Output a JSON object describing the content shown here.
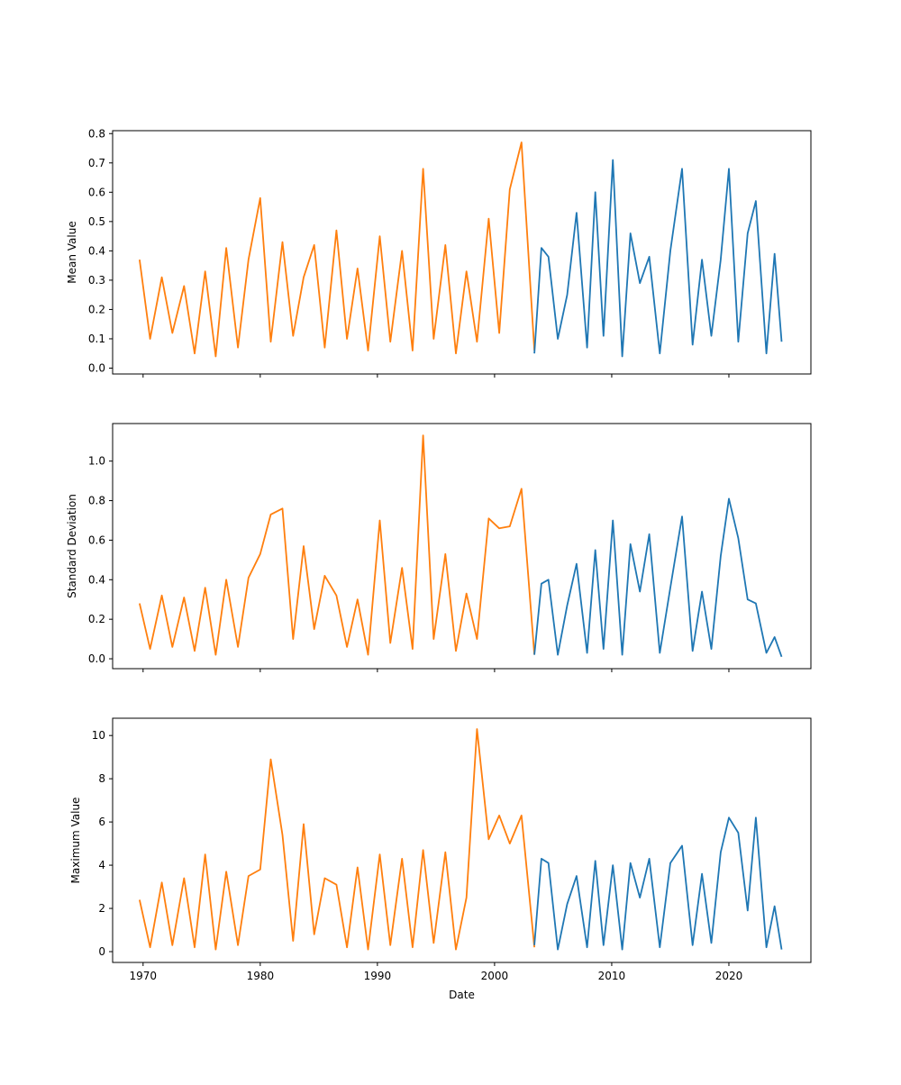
{
  "chart_data": [
    {
      "type": "line",
      "title": "",
      "xlabel": "",
      "ylabel": "Mean Value",
      "xlim": [
        1967.4,
        2027.0
      ],
      "ylim": [
        -0.02,
        0.81
      ],
      "xticks": [
        "1970",
        "1980",
        "1990",
        "2000",
        "2010",
        "2020"
      ],
      "yticks": [
        "0.0",
        "0.1",
        "0.2",
        "0.3",
        "0.4",
        "0.5",
        "0.6",
        "0.7",
        "0.8"
      ],
      "series": [
        {
          "color": "#ff7f0e",
          "x": [
            1969.7,
            1970.6,
            1971.6,
            1972.5,
            1973.5,
            1974.4,
            1975.3,
            1976.2,
            1977.1,
            1978.1,
            1979.0,
            1980.0,
            1980.9,
            1981.9,
            1982.8,
            1983.7,
            1984.6,
            1985.5,
            1986.5,
            1987.4,
            1988.3,
            1989.2,
            1990.2,
            1991.1,
            1992.1,
            1993.0,
            1993.9,
            1994.8,
            1995.8,
            1996.7,
            1997.6,
            1998.5,
            1999.5,
            2000.4,
            2001.3,
            2002.3,
            2003.4
          ],
          "y": [
            0.37,
            0.1,
            0.31,
            0.12,
            0.28,
            0.05,
            0.33,
            0.04,
            0.41,
            0.07,
            0.37,
            0.58,
            0.09,
            0.43,
            0.11,
            0.31,
            0.42,
            0.07,
            0.47,
            0.1,
            0.34,
            0.06,
            0.45,
            0.09,
            0.4,
            0.06,
            0.68,
            0.1,
            0.42,
            0.05,
            0.33,
            0.09,
            0.51,
            0.12,
            0.61,
            0.77,
            0.06
          ]
        },
        {
          "color": "#1f77b4",
          "x": [
            2003.4,
            2004.0,
            2004.6,
            2005.4,
            2006.2,
            2007.0,
            2007.9,
            2008.6,
            2009.3,
            2010.1,
            2010.9,
            2011.6,
            2012.4,
            2013.2,
            2014.1,
            2015.0,
            2016.0,
            2016.9,
            2017.7,
            2018.5,
            2019.3,
            2020.0,
            2020.8,
            2021.6,
            2022.3,
            2023.2,
            2023.9,
            2024.5
          ],
          "y": [
            0.05,
            0.41,
            0.38,
            0.1,
            0.25,
            0.53,
            0.07,
            0.6,
            0.11,
            0.71,
            0.04,
            0.46,
            0.29,
            0.38,
            0.05,
            0.4,
            0.68,
            0.08,
            0.37,
            0.11,
            0.37,
            0.68,
            0.09,
            0.46,
            0.57,
            0.05,
            0.39,
            0.09
          ]
        }
      ]
    },
    {
      "type": "line",
      "title": "",
      "xlabel": "",
      "ylabel": "Standard Deviation",
      "xlim": [
        1967.4,
        2027.0
      ],
      "ylim": [
        -0.05,
        1.19
      ],
      "xticks": [
        "1970",
        "1980",
        "1990",
        "2000",
        "2010",
        "2020"
      ],
      "yticks": [
        "0.0",
        "0.2",
        "0.4",
        "0.6",
        "0.8",
        "1.0"
      ],
      "series": [
        {
          "color": "#ff7f0e",
          "x": [
            1969.7,
            1970.6,
            1971.6,
            1972.5,
            1973.5,
            1974.4,
            1975.3,
            1976.2,
            1977.1,
            1978.1,
            1979.0,
            1980.0,
            1980.9,
            1981.9,
            1982.8,
            1983.7,
            1984.6,
            1985.5,
            1986.5,
            1987.4,
            1988.3,
            1989.2,
            1990.2,
            1991.1,
            1992.1,
            1993.0,
            1993.9,
            1994.8,
            1995.8,
            1996.7,
            1997.6,
            1998.5,
            1999.5,
            2000.4,
            2001.3,
            2002.3,
            2003.4
          ],
          "y": [
            0.28,
            0.05,
            0.32,
            0.06,
            0.31,
            0.04,
            0.36,
            0.02,
            0.4,
            0.06,
            0.41,
            0.53,
            0.73,
            0.76,
            0.1,
            0.57,
            0.15,
            0.42,
            0.32,
            0.06,
            0.3,
            0.02,
            0.7,
            0.08,
            0.46,
            0.05,
            1.13,
            0.1,
            0.53,
            0.04,
            0.33,
            0.1,
            0.71,
            0.66,
            0.67,
            0.86,
            0.02
          ]
        },
        {
          "color": "#1f77b4",
          "x": [
            2003.4,
            2004.0,
            2004.6,
            2005.4,
            2006.2,
            2007.0,
            2007.9,
            2008.6,
            2009.3,
            2010.1,
            2010.9,
            2011.6,
            2012.4,
            2013.2,
            2014.1,
            2015.0,
            2016.0,
            2016.9,
            2017.7,
            2018.5,
            2019.3,
            2020.0,
            2020.8,
            2021.6,
            2022.3,
            2023.2,
            2023.9,
            2024.5
          ],
          "y": [
            0.02,
            0.38,
            0.4,
            0.02,
            0.27,
            0.48,
            0.03,
            0.55,
            0.05,
            0.7,
            0.02,
            0.58,
            0.34,
            0.63,
            0.03,
            0.36,
            0.72,
            0.04,
            0.34,
            0.05,
            0.52,
            0.81,
            0.61,
            0.3,
            0.28,
            0.03,
            0.11,
            0.01
          ]
        }
      ]
    },
    {
      "type": "line",
      "title": "",
      "xlabel": "Date",
      "ylabel": "Maximum Value",
      "xlim": [
        1967.4,
        2027.0
      ],
      "ylim": [
        -0.5,
        10.8
      ],
      "xticks": [
        "1970",
        "1980",
        "1990",
        "2000",
        "2010",
        "2020"
      ],
      "yticks": [
        "0",
        "2",
        "4",
        "6",
        "8",
        "10"
      ],
      "series": [
        {
          "color": "#ff7f0e",
          "x": [
            1969.7,
            1970.6,
            1971.6,
            1972.5,
            1973.5,
            1974.4,
            1975.3,
            1976.2,
            1977.1,
            1978.1,
            1979.0,
            1980.0,
            1980.9,
            1981.9,
            1982.8,
            1983.7,
            1984.6,
            1985.5,
            1986.5,
            1987.4,
            1988.3,
            1989.2,
            1990.2,
            1991.1,
            1992.1,
            1993.0,
            1993.9,
            1994.8,
            1995.8,
            1996.7,
            1997.6,
            1998.5,
            1999.5,
            2000.4,
            2001.3,
            2002.3,
            2003.4
          ],
          "y": [
            2.4,
            0.2,
            3.2,
            0.3,
            3.4,
            0.2,
            4.5,
            0.1,
            3.7,
            0.3,
            3.5,
            3.8,
            8.9,
            5.4,
            0.5,
            5.9,
            0.8,
            3.4,
            3.1,
            0.2,
            3.9,
            0.1,
            4.5,
            0.3,
            4.3,
            0.2,
            4.7,
            0.4,
            4.6,
            0.1,
            2.5,
            10.3,
            5.2,
            6.3,
            5.0,
            6.3,
            0.2
          ]
        },
        {
          "color": "#1f77b4",
          "x": [
            2003.4,
            2004.0,
            2004.6,
            2005.4,
            2006.2,
            2007.0,
            2007.9,
            2008.6,
            2009.3,
            2010.1,
            2010.9,
            2011.6,
            2012.4,
            2013.2,
            2014.1,
            2015.0,
            2016.0,
            2016.9,
            2017.7,
            2018.5,
            2019.3,
            2020.0,
            2020.8,
            2021.6,
            2022.3,
            2023.2,
            2023.9,
            2024.5
          ],
          "y": [
            0.3,
            4.3,
            4.1,
            0.1,
            2.2,
            3.5,
            0.2,
            4.2,
            0.3,
            4.0,
            0.1,
            4.1,
            2.5,
            4.3,
            0.2,
            4.1,
            4.9,
            0.3,
            3.6,
            0.4,
            4.6,
            6.2,
            5.5,
            1.9,
            6.2,
            0.2,
            2.1,
            0.1
          ]
        }
      ]
    }
  ]
}
